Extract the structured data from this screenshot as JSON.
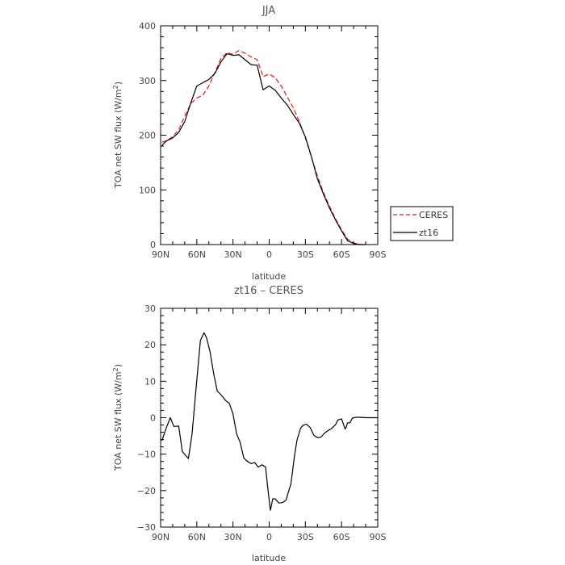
{
  "chart_data": [
    {
      "type": "line",
      "title": "JJA",
      "xlabel": "latitude",
      "ylabel": "TOA net SW flux (W/m²)",
      "ylabel_base": "TOA net SW flux (W/m",
      "ylabel_sup": "2",
      "ylabel_end": ")",
      "xlim": [
        90,
        -90
      ],
      "ylim": [
        0,
        400
      ],
      "xticks": [
        90,
        60,
        30,
        0,
        -30,
        -60,
        -90
      ],
      "xtick_labels": [
        "90N",
        "60N",
        "30N",
        "0",
        "30S",
        "60S",
        "90S"
      ],
      "yticks": [
        0,
        100,
        200,
        300,
        400
      ],
      "ytick_labels": [
        "0",
        "100",
        "200",
        "300",
        "400"
      ],
      "legend_position": "outside-right",
      "series": [
        {
          "name": "CERES",
          "color": "#e41a1c",
          "dash": "dashed",
          "x": [
            89,
            85,
            80,
            75,
            70,
            65,
            60,
            55,
            50,
            45,
            40,
            35,
            30,
            25,
            20,
            15,
            10,
            5,
            0,
            -5,
            -10,
            -15,
            -20,
            -25,
            -30,
            -35,
            -40,
            -45,
            -50,
            -55,
            -60,
            -65,
            -70,
            -75,
            -80
          ],
          "y": [
            187,
            190,
            197,
            210,
            235,
            258,
            268,
            273,
            290,
            315,
            340,
            351,
            348,
            355,
            350,
            343,
            338,
            307,
            312,
            305,
            290,
            270,
            250,
            225,
            195,
            160,
            125,
            95,
            70,
            47,
            27,
            10,
            3,
            0,
            0
          ]
        },
        {
          "name": "zt16",
          "color": "#000000",
          "dash": "solid",
          "x": [
            89,
            85,
            80,
            75,
            70,
            65,
            60,
            55,
            50,
            45,
            40,
            35,
            30,
            25,
            20,
            15,
            10,
            5,
            0,
            -5,
            -10,
            -15,
            -20,
            -25,
            -30,
            -35,
            -40,
            -45,
            -50,
            -55,
            -60,
            -65,
            -70,
            -75,
            -80
          ],
          "y": [
            181,
            190,
            195,
            205,
            225,
            259,
            290,
            296,
            302,
            313,
            334,
            349,
            346,
            347,
            338,
            329,
            328,
            283,
            290,
            282,
            268,
            255,
            238,
            222,
            197,
            161,
            120,
            92,
            67,
            45,
            25,
            7,
            2,
            0,
            0
          ]
        }
      ]
    },
    {
      "type": "line",
      "title": "zt16 – CERES",
      "xlabel": "latitude",
      "ylabel": "TOA net SW flux (W/m²)",
      "ylabel_base": "TOA net SW flux (W/m",
      "ylabel_sup": "2",
      "ylabel_end": ")",
      "xlim": [
        90,
        -90
      ],
      "ylim": [
        -30,
        30
      ],
      "xticks": [
        90,
        60,
        30,
        0,
        -30,
        -60,
        -90
      ],
      "xtick_labels": [
        "90N",
        "60N",
        "30N",
        "0",
        "30S",
        "60S",
        "90S"
      ],
      "yticks": [
        -30,
        -20,
        -10,
        0,
        10,
        20,
        30
      ],
      "ytick_labels": [
        "−30",
        "−20",
        "−10",
        "0",
        "10",
        "20",
        "30"
      ],
      "series": [
        {
          "color": "#000000",
          "dash": "solid",
          "x": [
            89,
            85,
            82,
            79,
            75,
            72,
            67,
            64,
            61,
            57,
            54,
            52,
            49,
            46,
            43,
            40,
            36,
            33,
            30,
            27,
            24,
            21,
            18,
            15,
            12,
            9,
            6,
            3,
            1,
            -1,
            -3,
            -5,
            -8,
            -11,
            -14,
            -16,
            -18,
            -21,
            -23,
            -26,
            -28,
            -31,
            -34,
            -37,
            -40,
            -43,
            -46,
            -49,
            -52,
            -55,
            -57,
            -60,
            -63,
            -64,
            -65,
            -67,
            -69,
            -72,
            -75,
            -80,
            -85,
            -90
          ],
          "y": [
            -6.3,
            -2.5,
            0,
            -2.4,
            -2.3,
            -9.3,
            -11.2,
            -4.6,
            6.5,
            21.2,
            23.3,
            22.0,
            18.0,
            12.0,
            7.3,
            6.3,
            4.7,
            3.9,
            1.0,
            -4.4,
            -6.8,
            -11.1,
            -12.0,
            -12.6,
            -12.3,
            -13.6,
            -12.9,
            -13.5,
            -19.8,
            -25.4,
            -22.2,
            -22.3,
            -23.4,
            -23.3,
            -22.6,
            -20.3,
            -18.2,
            -10.4,
            -6.2,
            -2.9,
            -2.1,
            -1.8,
            -2.7,
            -4.8,
            -5.5,
            -5.3,
            -4.2,
            -3.5,
            -2.9,
            -1.9,
            -0.6,
            -0.3,
            -3.1,
            -2.5,
            -1.4,
            -1.4,
            -0.1,
            0.1,
            0.1,
            0.0,
            0.0,
            0.0
          ]
        }
      ]
    }
  ]
}
